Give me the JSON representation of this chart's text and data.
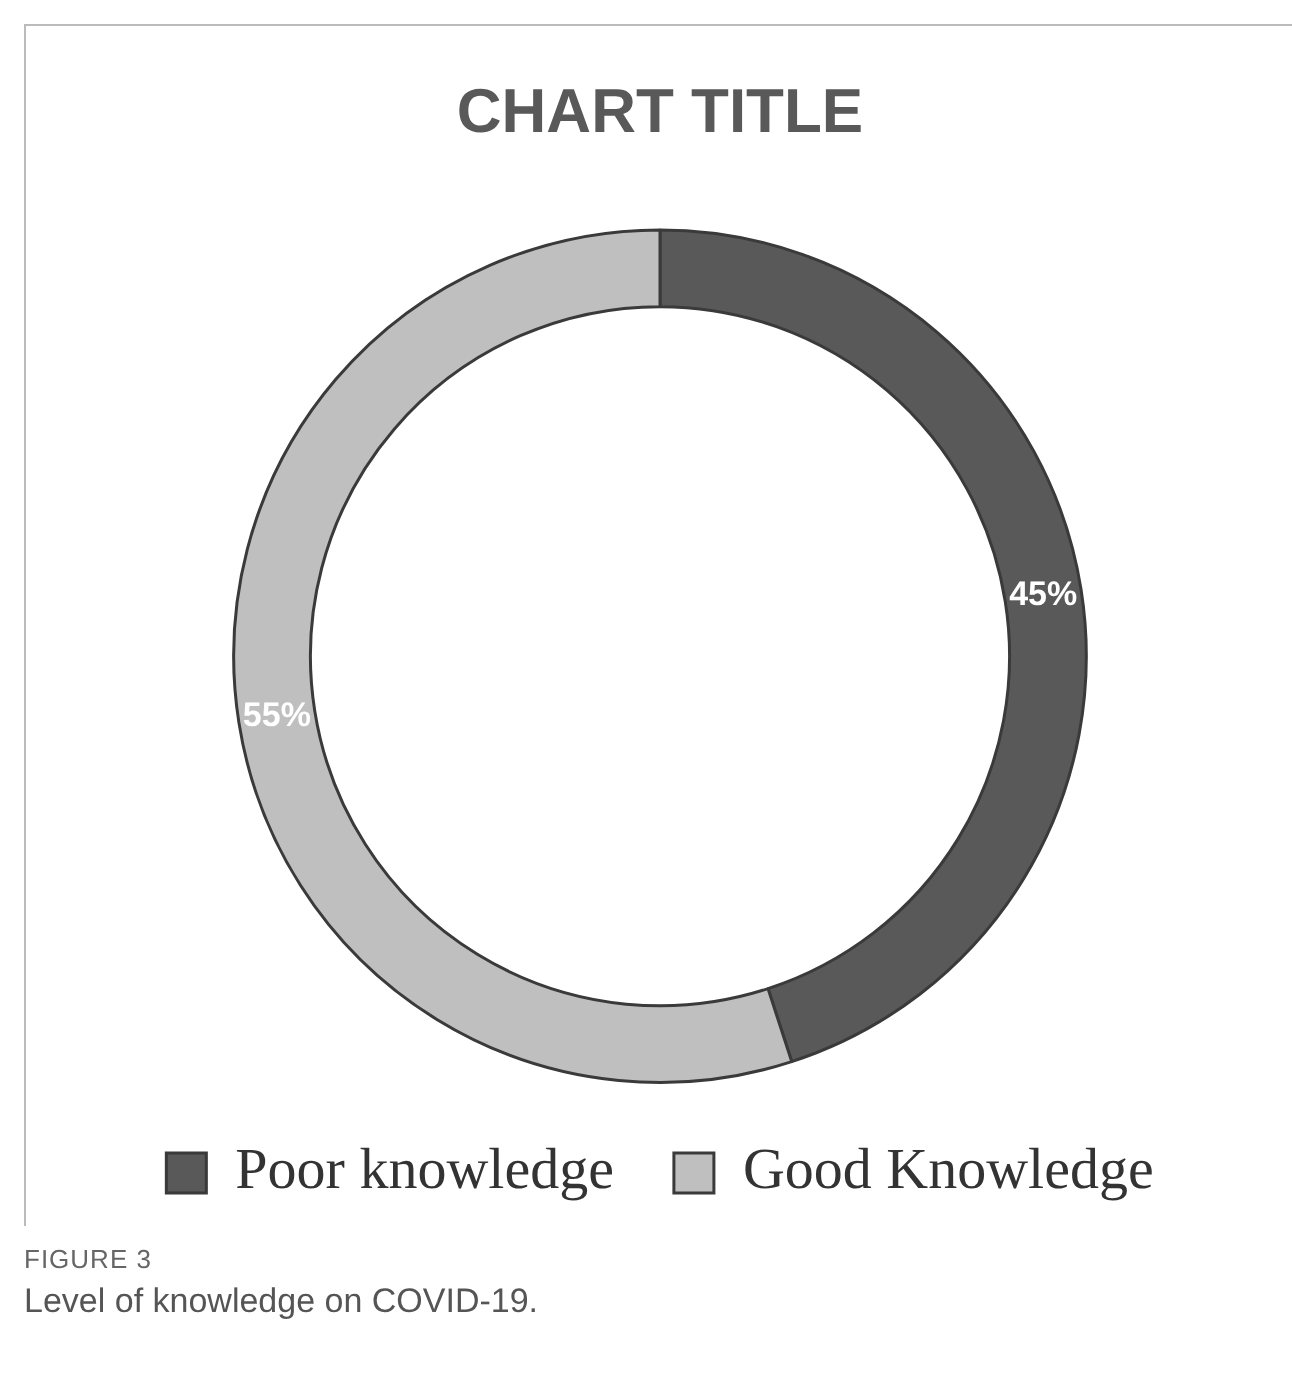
{
  "chart_data": {
    "type": "donut",
    "title": "CHART TITLE",
    "categories": [
      "Poor knowledge",
      "Good Knowledge"
    ],
    "values": [
      45,
      55
    ],
    "colors": [
      "#595959",
      "#bfbfbf"
    ],
    "value_labels": [
      "45%",
      "55%"
    ],
    "legend": "bottom",
    "annotations": [
      "FIGURE 3",
      "Level of knowledge on COVID-19."
    ]
  }
}
